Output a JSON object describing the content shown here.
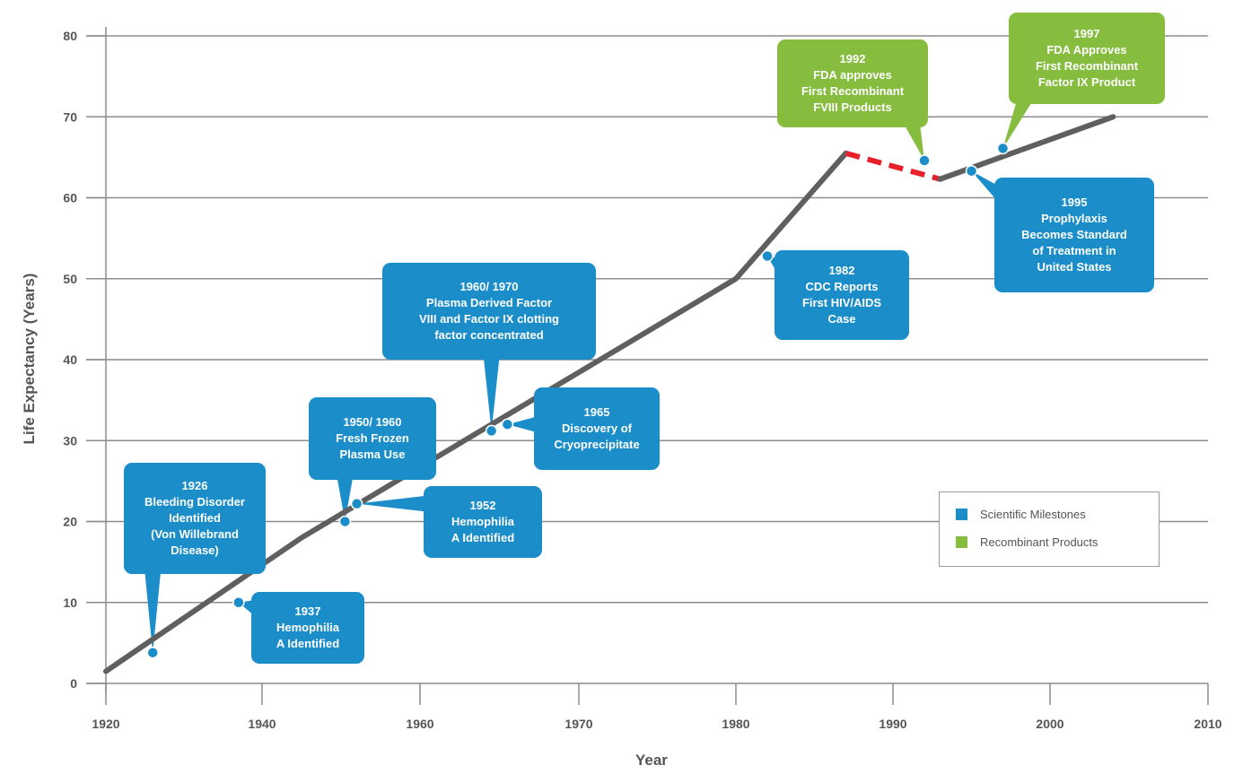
{
  "colors": {
    "scientific": "#1b8ec9",
    "recombinant": "#86bd3f",
    "line": "#5f5f5f",
    "dashed": "#e8202a",
    "grid": "#8c8c8c",
    "text": "#555555"
  },
  "chart_data": {
    "type": "line",
    "xlabel": "Year",
    "ylabel": "Life Expectancy (Years)",
    "xlim": [
      1920,
      2010
    ],
    "ylim": [
      0,
      80
    ],
    "xticks": [
      1920,
      1940,
      1960,
      1970,
      1980,
      1990,
      2000,
      2010
    ],
    "yticks": [
      0,
      10,
      20,
      30,
      40,
      50,
      60,
      70,
      80
    ],
    "grid": "horizontal",
    "series": [
      {
        "style": "solid",
        "points": [
          [
            1920,
            1.5
          ],
          [
            1945,
            18
          ],
          [
            1980,
            50
          ],
          [
            1987,
            65.5
          ]
        ]
      },
      {
        "style": "dashed",
        "points": [
          [
            1987,
            65.5
          ],
          [
            1993,
            62.3
          ]
        ]
      },
      {
        "style": "solid",
        "points": [
          [
            1993,
            62.3
          ],
          [
            2004,
            70
          ]
        ]
      }
    ],
    "markers": [
      {
        "x": 1926,
        "y": 3.8
      },
      {
        "x": 1937,
        "y": 10
      },
      {
        "x": 1950.5,
        "y": 20
      },
      {
        "x": 1952,
        "y": 22.2
      },
      {
        "x": 1964.5,
        "y": 31.2
      },
      {
        "x": 1965.5,
        "y": 32
      },
      {
        "x": 1982,
        "y": 52.8
      },
      {
        "x": 1992,
        "y": 64.6
      },
      {
        "x": 1995,
        "y": 63.3
      },
      {
        "x": 1997,
        "y": 66.1
      }
    ],
    "legend": {
      "position": "lower-right",
      "entries": [
        {
          "label": "Scientific Milestones",
          "color": "#1b8ec9"
        },
        {
          "label": "Recombinant Products",
          "color": "#86bd3f"
        }
      ]
    }
  },
  "callouts": [
    {
      "id": "1926",
      "category": "scientific",
      "lines": [
        "1926",
        "Bleeding Disorder",
        "Identified",
        "(Von Willebrand",
        "Disease)"
      ]
    },
    {
      "id": "1937",
      "category": "scientific",
      "lines": [
        "1937",
        "Hemophilia",
        "A Identified"
      ]
    },
    {
      "id": "1950-1960",
      "category": "scientific",
      "lines": [
        "1950/ 1960",
        "Fresh Frozen",
        "Plasma Use"
      ]
    },
    {
      "id": "1952",
      "category": "scientific",
      "lines": [
        "1952",
        "Hemophilia",
        "A Identified"
      ]
    },
    {
      "id": "1960-1970",
      "category": "scientific",
      "lines": [
        "1960/ 1970",
        "Plasma Derived Factor",
        "VIII and Factor IX clotting",
        "factor concentrated"
      ]
    },
    {
      "id": "1965",
      "category": "scientific",
      "lines": [
        "1965",
        "Discovery of",
        "Cryoprecipitate"
      ]
    },
    {
      "id": "1982",
      "category": "scientific",
      "lines": [
        "1982",
        "CDC Reports",
        "First HIV/AIDS",
        "Case"
      ]
    },
    {
      "id": "1992",
      "category": "recombinant",
      "lines": [
        "1992",
        "FDA approves",
        "First Recombinant",
        "FVIII Products"
      ]
    },
    {
      "id": "1995",
      "category": "scientific",
      "lines": [
        "1995",
        "Prophylaxis",
        "Becomes Standard",
        "of Treatment in",
        "United States"
      ]
    },
    {
      "id": "1997",
      "category": "recombinant",
      "lines": [
        "1997",
        "FDA Approves",
        "First Recombinant",
        "Factor IX Product"
      ]
    }
  ]
}
